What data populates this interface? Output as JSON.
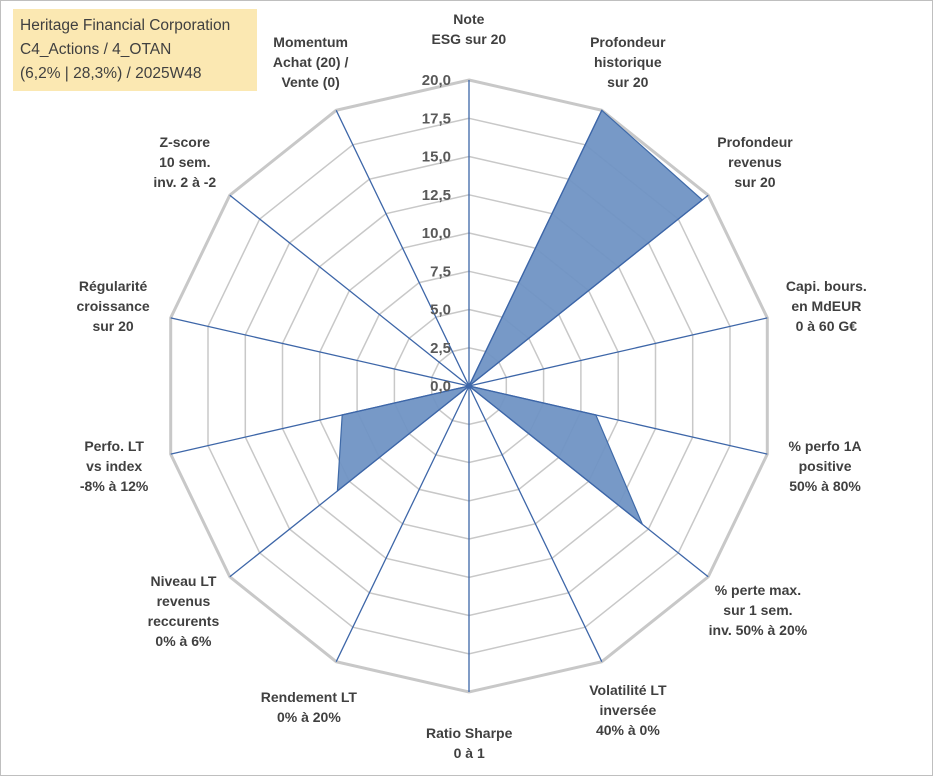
{
  "info": {
    "line1": "Heritage Financial Corporation",
    "line2": "C4_Actions / 4_OTAN",
    "line3": "(6,2% | 28,3%) / 2025W48"
  },
  "colors": {
    "fill": "#7094c4",
    "stroke": "#3f6aa8",
    "grid": "#c8c8c8",
    "spoke": "#3d66a8",
    "info_bg": "#fbe8b2"
  },
  "chart_data": {
    "type": "radar",
    "rmin": 0,
    "rmax": 20,
    "step": 2.5,
    "tick_labels": [
      "0,0",
      "2,5",
      "5,0",
      "7,5",
      "10,0",
      "12,5",
      "15,0",
      "17,5",
      "20,0"
    ],
    "axes": [
      [
        "Note",
        "ESG sur 20"
      ],
      [
        "Profondeur",
        "historique",
        "sur 20"
      ],
      [
        "Profondeur",
        "revenus",
        "sur 20"
      ],
      [
        "Capi. bours.",
        "en MdEUR",
        "0 à 60 G€"
      ],
      [
        "% perfo 1A",
        "positive",
        "50% à 80%"
      ],
      [
        "% perte max.",
        "sur 1 sem.",
        "inv. 50% à 20%"
      ],
      [
        "Volatilité LT",
        "inversée",
        "40% à 0%"
      ],
      [
        "Ratio Sharpe",
        "0 à 1"
      ],
      [
        "Rendement LT",
        "0% à 20%"
      ],
      [
        "Niveau LT",
        "revenus",
        "reccurents",
        "0% à 6%"
      ],
      [
        "Perfo. LT",
        "vs index",
        "-8% à 12%"
      ],
      [
        "Régularité",
        "croissance",
        "sur 20"
      ],
      [
        "Z-score",
        "10 sem.",
        "inv. 2 à -2"
      ],
      [
        "Momentum",
        "Achat (20) /",
        "Vente (0)"
      ]
    ],
    "values": [
      0,
      20,
      19.5,
      0,
      8.5,
      14.5,
      0,
      0,
      0,
      11,
      8.5,
      0,
      0,
      0
    ]
  }
}
